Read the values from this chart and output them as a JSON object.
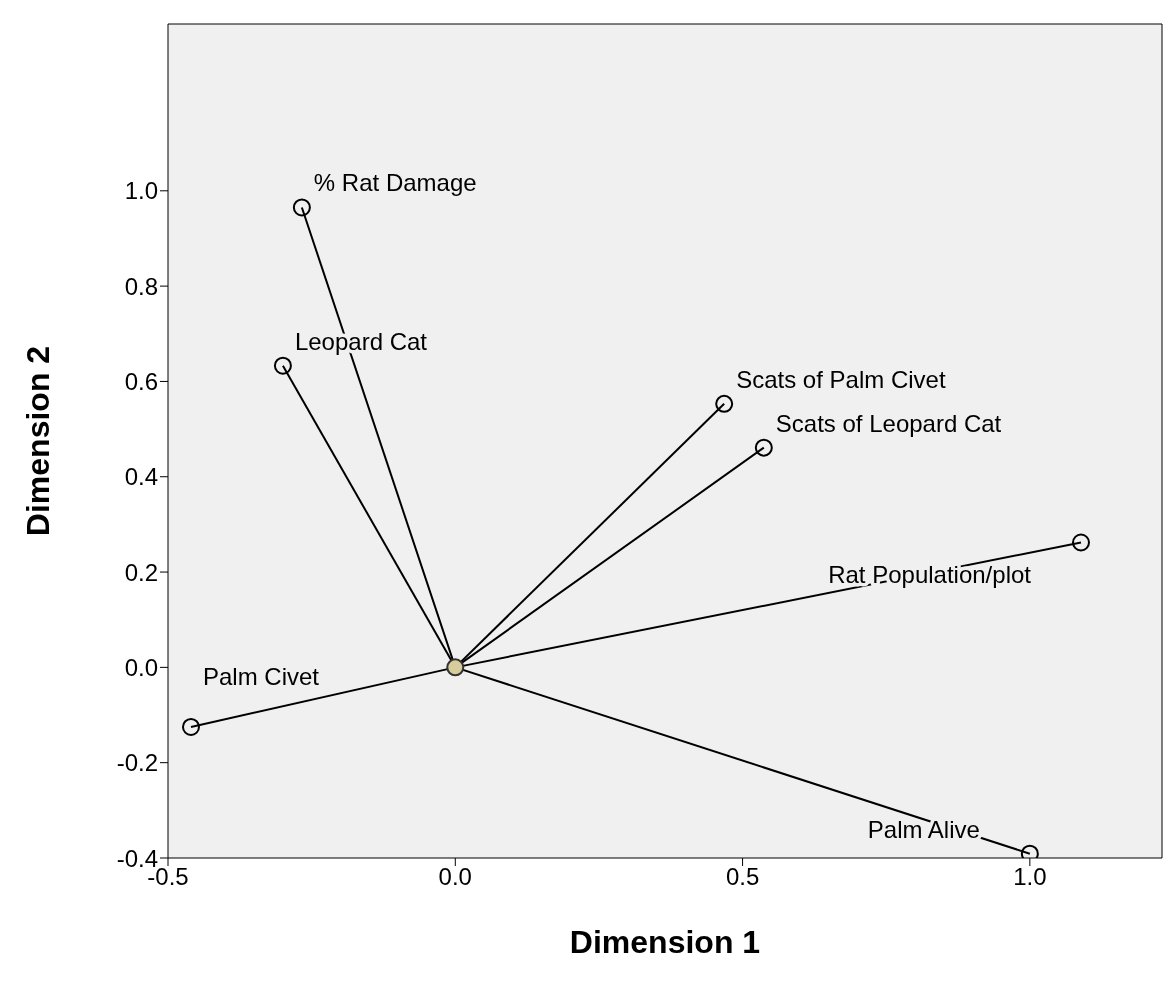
{
  "chart_data": {
    "type": "line",
    "xlabel": "Dimension 1",
    "ylabel": "Dimension 2",
    "xlim": [
      -0.5,
      1.23
    ],
    "ylim": [
      -0.4,
      1.35
    ],
    "xticks": [
      {
        "value": -0.5,
        "label": "-0.5"
      },
      {
        "value": 0,
        "label": "0.0"
      },
      {
        "value": 0.5,
        "label": "0.5"
      },
      {
        "value": 1,
        "label": "1.0"
      }
    ],
    "yticks": [
      {
        "value": -0.4,
        "label": "-0.4"
      },
      {
        "value": -0.2,
        "label": "-0.2"
      },
      {
        "value": 0,
        "label": "0.0"
      },
      {
        "value": 0.2,
        "label": "0.2"
      },
      {
        "value": 0.4,
        "label": "0.4"
      },
      {
        "value": 0.6,
        "label": "0.6"
      },
      {
        "value": 0.8,
        "label": "0.8"
      },
      {
        "value": 1,
        "label": "1.0"
      }
    ],
    "grid": false,
    "legend": false,
    "marker": "circle",
    "line_style": "solid",
    "series": [
      {
        "name": "% Rat Damage",
        "color": "#000000",
        "x": [
          0,
          -0.267
        ],
        "values": [
          0,
          0.965
        ]
      },
      {
        "name": "Leopard Cat",
        "color": "#000000",
        "x": [
          0,
          -0.3
        ],
        "values": [
          0,
          0.633
        ]
      },
      {
        "name": "Scats of Palm Civet",
        "color": "#000000",
        "x": [
          0,
          0.468
        ],
        "values": [
          0,
          0.553
        ]
      },
      {
        "name": "Scats of Leopard Cat",
        "color": "#000000",
        "x": [
          0,
          0.537
        ],
        "values": [
          0,
          0.461
        ]
      },
      {
        "name": "Rat Population/plot",
        "color": "#000000",
        "x": [
          0,
          1.089
        ],
        "values": [
          0,
          0.262
        ]
      },
      {
        "name": "Palm Civet",
        "color": "#000000",
        "x": [
          0,
          -0.46
        ],
        "values": [
          0,
          -0.125
        ]
      },
      {
        "name": "Palm Alive",
        "color": "#000000",
        "x": [
          0,
          1.0
        ],
        "values": [
          0,
          -0.391
        ]
      },
      {
        "type": "scatter",
        "color": "#d6cc9c",
        "x": [
          0
        ],
        "values": [
          0
        ]
      }
    ]
  }
}
